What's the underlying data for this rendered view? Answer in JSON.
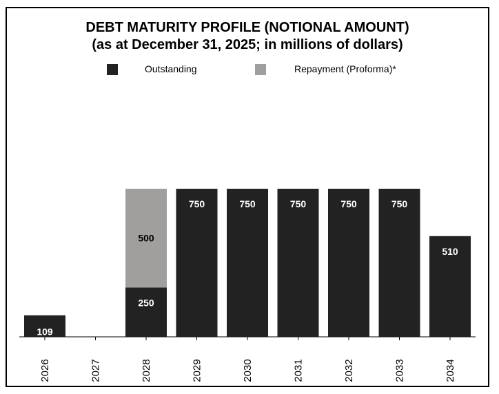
{
  "chart_data": {
    "type": "bar",
    "stacked": true,
    "title": "DEBT MATURITY PROFILE (NOTIONAL AMOUNT)",
    "subtitle": "(as at December 31, 2025; in millions of dollars)",
    "categories": [
      "2026",
      "2027",
      "2028",
      "2029",
      "2030",
      "2031",
      "2032",
      "2033",
      "2034"
    ],
    "series": [
      {
        "name": "Outstanding",
        "color": "#222222",
        "values": [
          109,
          0,
          250,
          750,
          750,
          750,
          750,
          750,
          510
        ]
      },
      {
        "name": "Repayment (Proforma)*",
        "color": "#a09f9d",
        "values": [
          0,
          0,
          500,
          0,
          0,
          0,
          0,
          0,
          0
        ]
      }
    ],
    "ylim": [
      0,
      750
    ],
    "xlabel": "",
    "ylabel": "",
    "legend": "top"
  }
}
